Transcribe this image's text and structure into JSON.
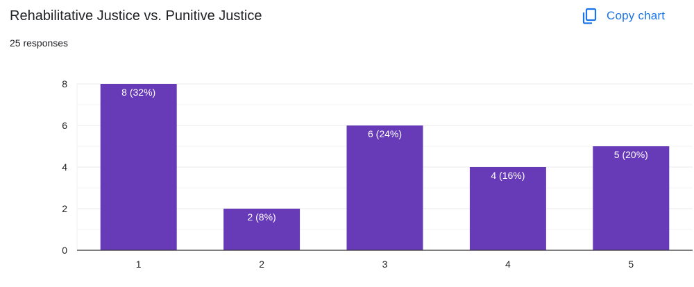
{
  "header": {
    "title": "Rehabilitative Justice vs. Punitive Justice",
    "response_count": "25 responses",
    "copy_button_label": "Copy chart",
    "copy_icon": "copy-icon"
  },
  "colors": {
    "bar": "#673ab7",
    "accent": "#1a73e8",
    "grid": "#e8e8e8",
    "axis": "#333333"
  },
  "chart_data": {
    "type": "bar",
    "title": "Rehabilitative Justice vs. Punitive Justice",
    "subtitle": "25 responses",
    "categories": [
      "1",
      "2",
      "3",
      "4",
      "5"
    ],
    "values": [
      8,
      2,
      6,
      4,
      5
    ],
    "data_labels": [
      "8 (32%)",
      "2 (8%)",
      "6 (24%)",
      "4 (16%)",
      "5 (20%)"
    ],
    "ylim": [
      0,
      8
    ],
    "yticks": [
      0,
      2,
      4,
      6,
      8
    ],
    "grid": true,
    "legend": "none"
  }
}
